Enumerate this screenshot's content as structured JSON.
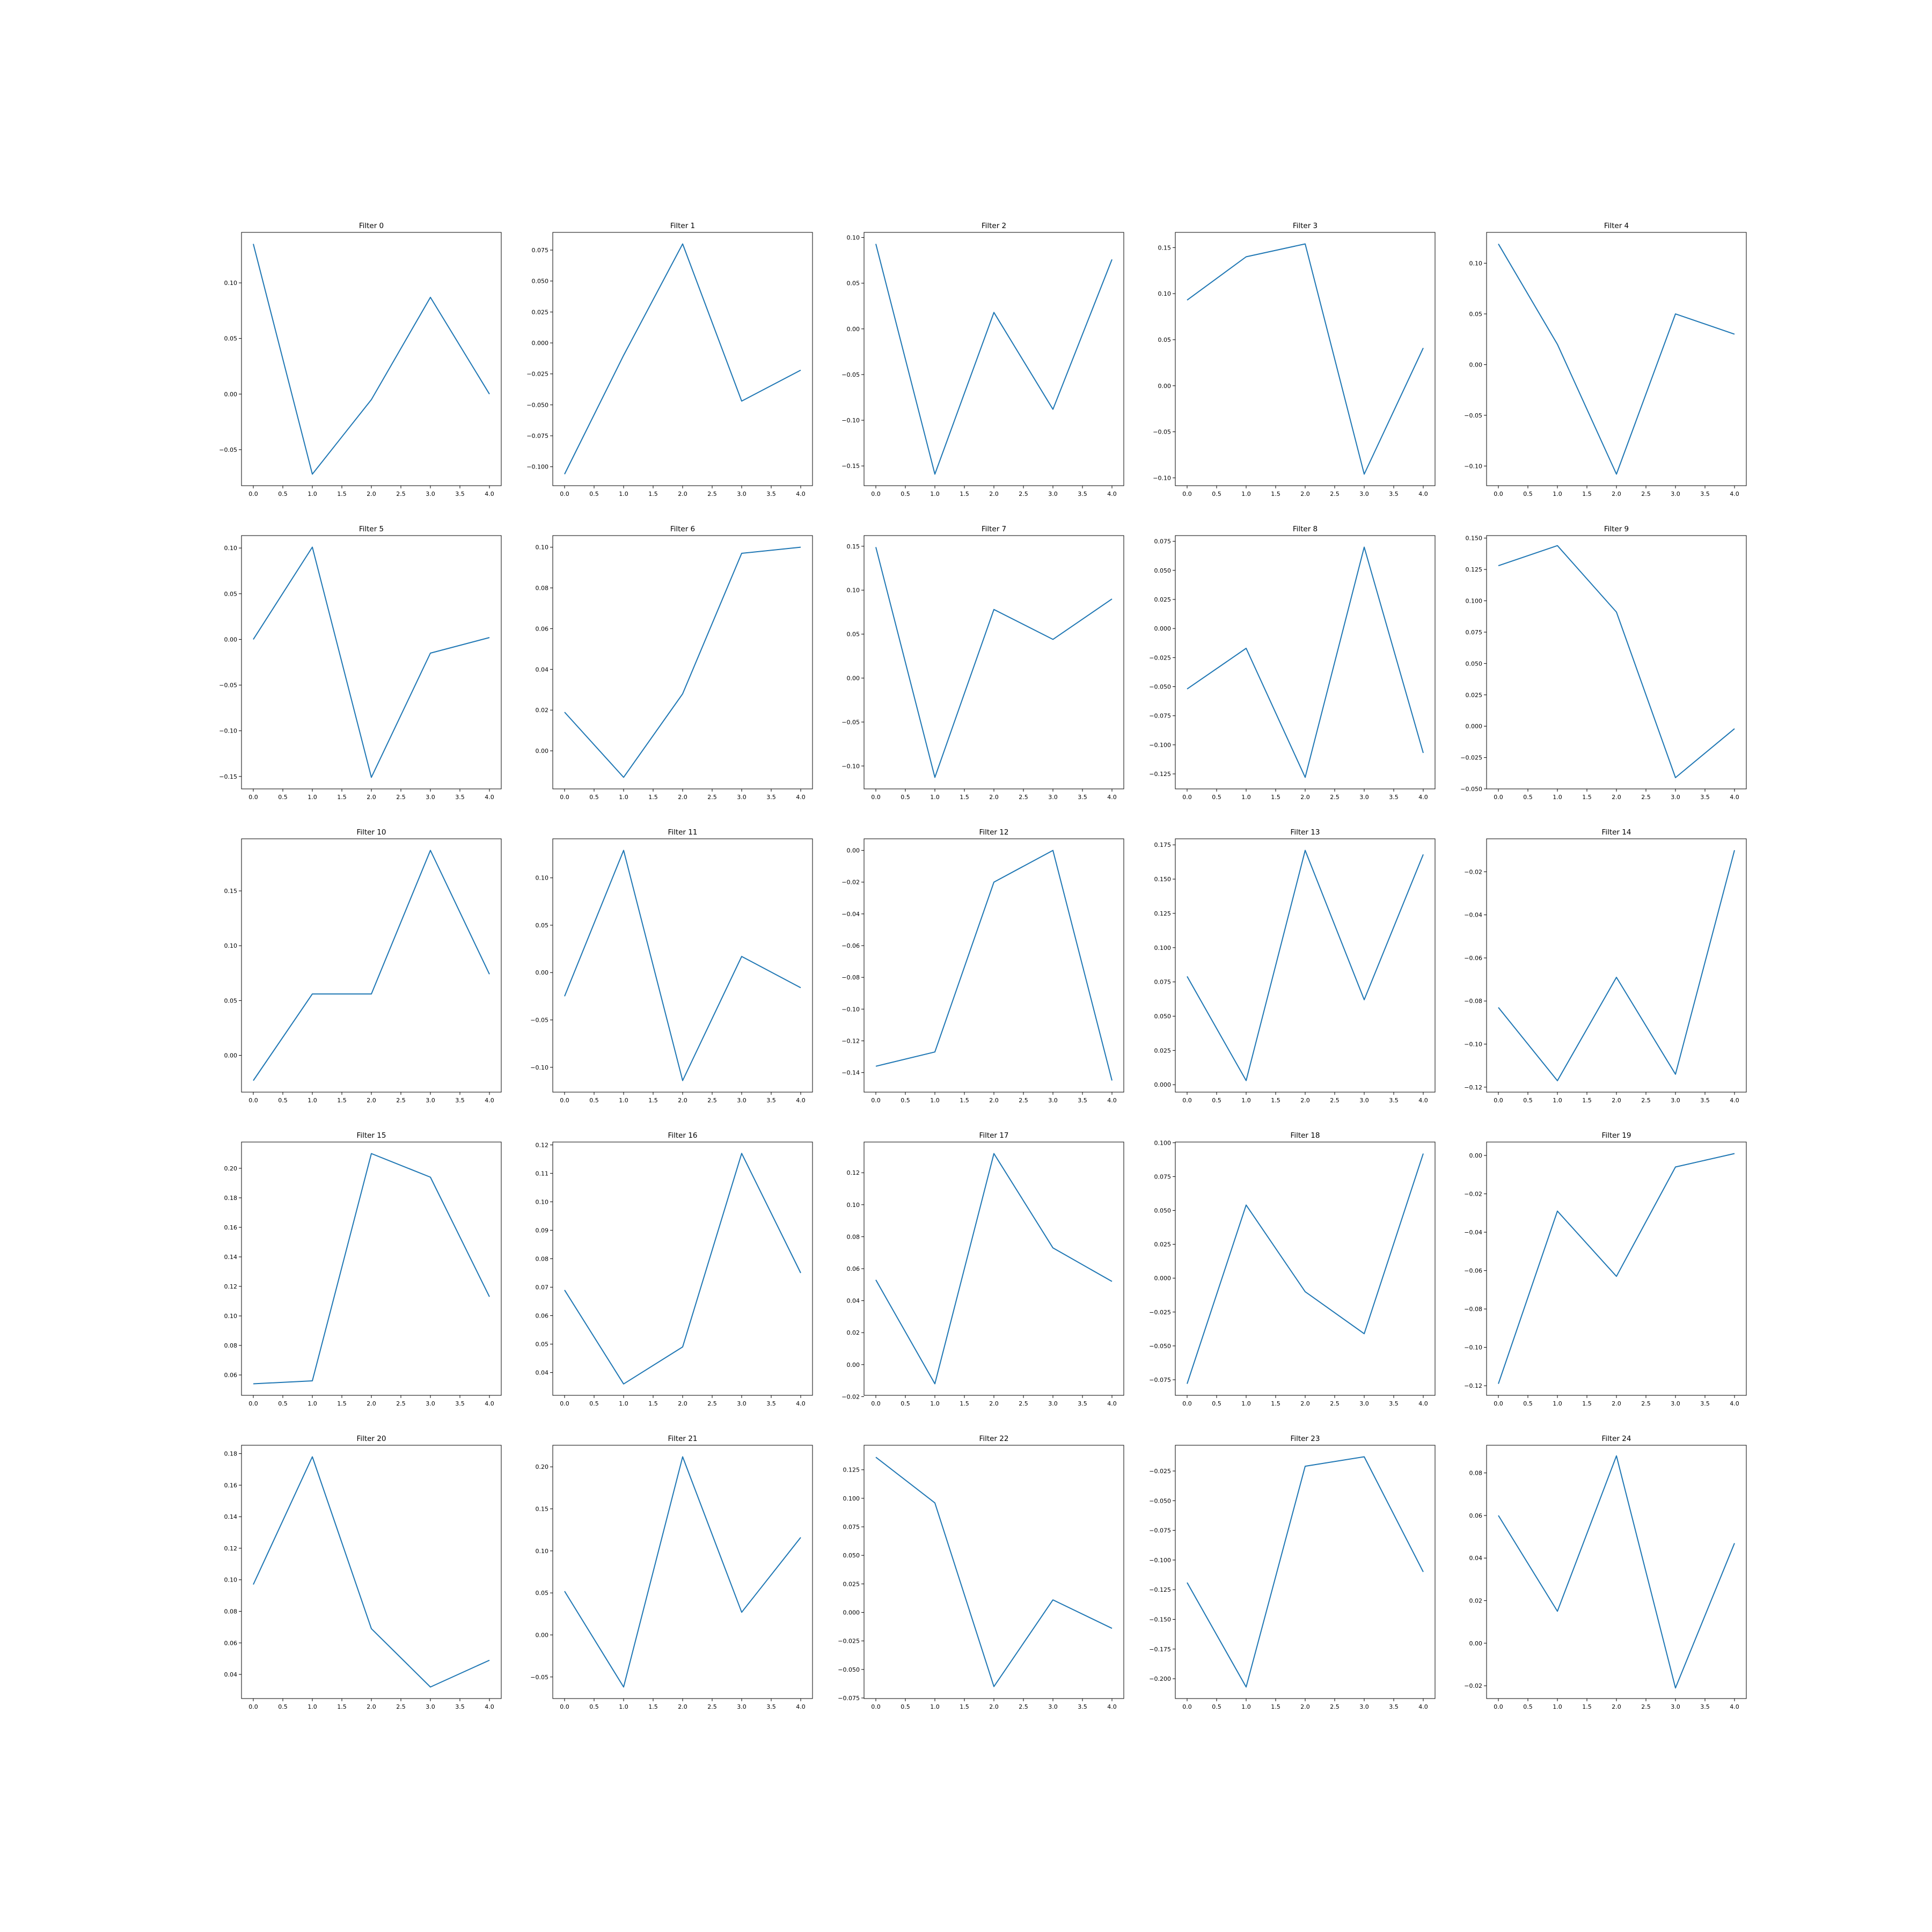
{
  "chart_data": [
    {
      "type": "line",
      "title": "Filter 0",
      "x": [
        0,
        1,
        2,
        3,
        4
      ],
      "values": [
        0.135,
        -0.072,
        -0.005,
        0.087,
        0.0
      ],
      "x_ticks": [
        "0.0",
        "0.5",
        "1.0",
        "1.5",
        "2.0",
        "2.5",
        "3.0",
        "3.5",
        "4.0"
      ],
      "y_ticks": [
        "−0.05",
        "0.00",
        "0.05",
        "0.10"
      ],
      "ylim": [
        -0.0824,
        0.1454
      ]
    },
    {
      "type": "line",
      "title": "Filter 1",
      "x": [
        0,
        1,
        2,
        3,
        4
      ],
      "values": [
        -0.106,
        -0.01,
        0.08,
        -0.047,
        -0.022
      ],
      "x_ticks": [
        "0.0",
        "0.5",
        "1.0",
        "1.5",
        "2.0",
        "2.5",
        "3.0",
        "3.5",
        "4.0"
      ],
      "y_ticks": [
        "−0.100",
        "−0.075",
        "−0.050",
        "−0.025",
        "0.000",
        "0.025",
        "0.050",
        "0.075"
      ],
      "ylim": [
        -0.1153,
        0.0893
      ]
    },
    {
      "type": "line",
      "title": "Filter 2",
      "x": [
        0,
        1,
        2,
        3,
        4
      ],
      "values": [
        0.093,
        -0.159,
        0.018,
        -0.088,
        0.076
      ],
      "x_ticks": [
        "0.0",
        "0.5",
        "1.0",
        "1.5",
        "2.0",
        "2.5",
        "3.0",
        "3.5",
        "4.0"
      ],
      "y_ticks": [
        "−0.15",
        "−0.10",
        "−0.05",
        "0.00",
        "0.05",
        "0.10"
      ],
      "ylim": [
        -0.1716,
        0.1056
      ]
    },
    {
      "type": "line",
      "title": "Filter 3",
      "x": [
        0,
        1,
        2,
        3,
        4
      ],
      "values": [
        0.093,
        0.14,
        0.154,
        -0.096,
        0.041
      ],
      "x_ticks": [
        "0.0",
        "0.5",
        "1.0",
        "1.5",
        "2.0",
        "2.5",
        "3.0",
        "3.5",
        "4.0"
      ],
      "y_ticks": [
        "−0.10",
        "−0.05",
        "0.00",
        "0.05",
        "0.10",
        "0.15"
      ],
      "ylim": [
        -0.1085,
        0.1665
      ]
    },
    {
      "type": "line",
      "title": "Filter 4",
      "x": [
        0,
        1,
        2,
        3,
        4
      ],
      "values": [
        0.119,
        0.02,
        -0.108,
        0.05,
        0.03
      ],
      "x_ticks": [
        "0.0",
        "0.5",
        "1.0",
        "1.5",
        "2.0",
        "2.5",
        "3.0",
        "3.5",
        "4.0"
      ],
      "y_ticks": [
        "−0.10",
        "−0.05",
        "0.00",
        "0.05",
        "0.10"
      ],
      "ylim": [
        -0.1194,
        0.1304
      ]
    },
    {
      "type": "line",
      "title": "Filter 5",
      "x": [
        0,
        1,
        2,
        3,
        4
      ],
      "values": [
        0.0,
        0.101,
        -0.151,
        -0.015,
        0.002
      ],
      "x_ticks": [
        "0.0",
        "0.5",
        "1.0",
        "1.5",
        "2.0",
        "2.5",
        "3.0",
        "3.5",
        "4.0"
      ],
      "y_ticks": [
        "−0.15",
        "−0.10",
        "−0.05",
        "0.00",
        "0.05",
        "0.10"
      ],
      "ylim": [
        -0.1636,
        0.1136
      ]
    },
    {
      "type": "line",
      "title": "Filter 6",
      "x": [
        0,
        1,
        2,
        3,
        4
      ],
      "values": [
        0.019,
        -0.013,
        0.028,
        0.097,
        0.1
      ],
      "x_ticks": [
        "0.0",
        "0.5",
        "1.0",
        "1.5",
        "2.0",
        "2.5",
        "3.0",
        "3.5",
        "4.0"
      ],
      "y_ticks": [
        "0.00",
        "0.02",
        "0.04",
        "0.06",
        "0.08",
        "0.10"
      ],
      "ylim": [
        -0.0187,
        0.1057
      ]
    },
    {
      "type": "line",
      "title": "Filter 7",
      "x": [
        0,
        1,
        2,
        3,
        4
      ],
      "values": [
        0.149,
        -0.113,
        0.078,
        0.044,
        0.09
      ],
      "x_ticks": [
        "0.0",
        "0.5",
        "1.0",
        "1.5",
        "2.0",
        "2.5",
        "3.0",
        "3.5",
        "4.0"
      ],
      "y_ticks": [
        "−0.10",
        "−0.05",
        "0.00",
        "0.05",
        "0.10",
        "0.15"
      ],
      "ylim": [
        -0.1261,
        0.1621
      ]
    },
    {
      "type": "line",
      "title": "Filter 8",
      "x": [
        0,
        1,
        2,
        3,
        4
      ],
      "values": [
        -0.052,
        -0.017,
        -0.128,
        0.07,
        -0.107
      ],
      "x_ticks": [
        "0.0",
        "0.5",
        "1.0",
        "1.5",
        "2.0",
        "2.5",
        "3.0",
        "3.5",
        "4.0"
      ],
      "y_ticks": [
        "−0.125",
        "−0.100",
        "−0.075",
        "−0.050",
        "−0.025",
        "0.000",
        "0.025",
        "0.050",
        "0.075"
      ],
      "ylim": [
        -0.1379,
        0.0799
      ]
    },
    {
      "type": "line",
      "title": "Filter 9",
      "x": [
        0,
        1,
        2,
        3,
        4
      ],
      "values": [
        0.128,
        0.144,
        0.091,
        -0.041,
        -0.002
      ],
      "x_ticks": [
        "0.0",
        "0.5",
        "1.0",
        "1.5",
        "2.0",
        "2.5",
        "3.0",
        "3.5",
        "4.0"
      ],
      "y_ticks": [
        "−0.050",
        "−0.025",
        "0.000",
        "0.025",
        "0.050",
        "0.075",
        "0.100",
        "0.125",
        "0.150"
      ],
      "ylim": [
        -0.05,
        0.152
      ]
    },
    {
      "type": "line",
      "title": "Filter 10",
      "x": [
        0,
        1,
        2,
        3,
        4
      ],
      "values": [
        -0.023,
        0.056,
        0.056,
        0.187,
        0.074
      ],
      "x_ticks": [
        "0.0",
        "0.5",
        "1.0",
        "1.5",
        "2.0",
        "2.5",
        "3.0",
        "3.5",
        "4.0"
      ],
      "y_ticks": [
        "0.00",
        "0.05",
        "0.10",
        "0.15"
      ],
      "ylim": [
        -0.0335,
        0.1975
      ]
    },
    {
      "type": "line",
      "title": "Filter 11",
      "x": [
        0,
        1,
        2,
        3,
        4
      ],
      "values": [
        -0.025,
        0.129,
        -0.114,
        0.017,
        -0.016
      ],
      "x_ticks": [
        "0.0",
        "0.5",
        "1.0",
        "1.5",
        "2.0",
        "2.5",
        "3.0",
        "3.5",
        "4.0"
      ],
      "y_ticks": [
        "−0.10",
        "−0.05",
        "0.00",
        "0.05",
        "0.10"
      ],
      "ylim": [
        -0.1262,
        0.1412
      ]
    },
    {
      "type": "line",
      "title": "Filter 12",
      "x": [
        0,
        1,
        2,
        3,
        4
      ],
      "values": [
        -0.136,
        -0.127,
        -0.02,
        0.0,
        -0.145
      ],
      "x_ticks": [
        "0.0",
        "0.5",
        "1.0",
        "1.5",
        "2.0",
        "2.5",
        "3.0",
        "3.5",
        "4.0"
      ],
      "y_ticks": [
        "−0.14",
        "−0.12",
        "−0.10",
        "−0.08",
        "−0.06",
        "−0.04",
        "−0.02",
        "0.00"
      ],
      "ylim": [
        -0.1523,
        0.0073
      ]
    },
    {
      "type": "line",
      "title": "Filter 13",
      "x": [
        0,
        1,
        2,
        3,
        4
      ],
      "values": [
        0.079,
        0.003,
        0.171,
        0.062,
        0.168
      ],
      "x_ticks": [
        "0.0",
        "0.5",
        "1.0",
        "1.5",
        "2.0",
        "2.5",
        "3.0",
        "3.5",
        "4.0"
      ],
      "y_ticks": [
        "0.000",
        "0.025",
        "0.050",
        "0.075",
        "0.100",
        "0.125",
        "0.150",
        "0.175"
      ],
      "ylim": [
        -0.0054,
        0.1794
      ]
    },
    {
      "type": "line",
      "title": "Filter 14",
      "x": [
        0,
        1,
        2,
        3,
        4
      ],
      "values": [
        -0.083,
        -0.117,
        -0.069,
        -0.114,
        -0.01
      ],
      "x_ticks": [
        "0.0",
        "0.5",
        "1.0",
        "1.5",
        "2.0",
        "2.5",
        "3.0",
        "3.5",
        "4.0"
      ],
      "y_ticks": [
        "−0.12",
        "−0.10",
        "−0.08",
        "−0.06",
        "−0.04",
        "−0.02"
      ],
      "ylim": [
        -0.1223,
        -0.0047
      ]
    },
    {
      "type": "line",
      "title": "Filter 15",
      "x": [
        0,
        1,
        2,
        3,
        4
      ],
      "values": [
        0.054,
        0.056,
        0.21,
        0.194,
        0.113
      ],
      "x_ticks": [
        "0.0",
        "0.5",
        "1.0",
        "1.5",
        "2.0",
        "2.5",
        "3.0",
        "3.5",
        "4.0"
      ],
      "y_ticks": [
        "0.06",
        "0.08",
        "0.10",
        "0.12",
        "0.14",
        "0.16",
        "0.18",
        "0.20"
      ],
      "ylim": [
        0.0462,
        0.2178
      ]
    },
    {
      "type": "line",
      "title": "Filter 16",
      "x": [
        0,
        1,
        2,
        3,
        4
      ],
      "values": [
        0.069,
        0.036,
        0.049,
        0.117,
        0.075
      ],
      "x_ticks": [
        "0.0",
        "0.5",
        "1.0",
        "1.5",
        "2.0",
        "2.5",
        "3.0",
        "3.5",
        "4.0"
      ],
      "y_ticks": [
        "0.04",
        "0.05",
        "0.06",
        "0.07",
        "0.08",
        "0.09",
        "0.10",
        "0.11",
        "0.12"
      ],
      "ylim": [
        0.032,
        0.121
      ]
    },
    {
      "type": "line",
      "title": "Filter 17",
      "x": [
        0,
        1,
        2,
        3,
        4
      ],
      "values": [
        0.053,
        -0.012,
        0.132,
        0.073,
        0.052
      ],
      "x_ticks": [
        "0.0",
        "0.5",
        "1.0",
        "1.5",
        "2.0",
        "2.5",
        "3.0",
        "3.5",
        "4.0"
      ],
      "y_ticks": [
        "−0.02",
        "0.00",
        "0.02",
        "0.04",
        "0.06",
        "0.08",
        "0.10",
        "0.12"
      ],
      "ylim": [
        -0.0192,
        0.1392
      ]
    },
    {
      "type": "line",
      "title": "Filter 18",
      "x": [
        0,
        1,
        2,
        3,
        4
      ],
      "values": [
        -0.078,
        0.054,
        -0.01,
        -0.041,
        0.092
      ],
      "x_ticks": [
        "0.0",
        "0.5",
        "1.0",
        "1.5",
        "2.0",
        "2.5",
        "3.0",
        "3.5",
        "4.0"
      ],
      "y_ticks": [
        "−0.075",
        "−0.050",
        "−0.025",
        "0.000",
        "0.025",
        "0.050",
        "0.075",
        "0.100"
      ],
      "ylim": [
        -0.0865,
        0.1005
      ]
    },
    {
      "type": "line",
      "title": "Filter 19",
      "x": [
        0,
        1,
        2,
        3,
        4
      ],
      "values": [
        -0.119,
        -0.029,
        -0.063,
        -0.006,
        0.001
      ],
      "x_ticks": [
        "0.0",
        "0.5",
        "1.0",
        "1.5",
        "2.0",
        "2.5",
        "3.0",
        "3.5",
        "4.0"
      ],
      "y_ticks": [
        "−0.12",
        "−0.10",
        "−0.08",
        "−0.06",
        "−0.04",
        "−0.02",
        "0.00"
      ],
      "ylim": [
        -0.125,
        0.007
      ]
    },
    {
      "type": "line",
      "title": "Filter 20",
      "x": [
        0,
        1,
        2,
        3,
        4
      ],
      "values": [
        0.097,
        0.178,
        0.069,
        0.032,
        0.049
      ],
      "x_ticks": [
        "0.0",
        "0.5",
        "1.0",
        "1.5",
        "2.0",
        "2.5",
        "3.0",
        "3.5",
        "4.0"
      ],
      "y_ticks": [
        "0.04",
        "0.06",
        "0.08",
        "0.10",
        "0.12",
        "0.14",
        "0.16",
        "0.18"
      ],
      "ylim": [
        0.0247,
        0.1853
      ]
    },
    {
      "type": "line",
      "title": "Filter 21",
      "x": [
        0,
        1,
        2,
        3,
        4
      ],
      "values": [
        0.052,
        -0.062,
        0.212,
        0.027,
        0.116
      ],
      "x_ticks": [
        "0.0",
        "0.5",
        "1.0",
        "1.5",
        "2.0",
        "2.5",
        "3.0",
        "3.5",
        "4.0"
      ],
      "y_ticks": [
        "−0.05",
        "0.00",
        "0.05",
        "0.10",
        "0.15",
        "0.20"
      ],
      "ylim": [
        -0.0757,
        0.2257
      ]
    },
    {
      "type": "line",
      "title": "Filter 22",
      "x": [
        0,
        1,
        2,
        3,
        4
      ],
      "values": [
        0.136,
        0.096,
        -0.065,
        0.011,
        -0.014
      ],
      "x_ticks": [
        "0.0",
        "0.5",
        "1.0",
        "1.5",
        "2.0",
        "2.5",
        "3.0",
        "3.5",
        "4.0"
      ],
      "y_ticks": [
        "−0.075",
        "−0.050",
        "−0.025",
        "0.000",
        "0.025",
        "0.050",
        "0.075",
        "0.100",
        "0.125"
      ],
      "ylim": [
        -0.0755,
        0.1465
      ]
    },
    {
      "type": "line",
      "title": "Filter 23",
      "x": [
        0,
        1,
        2,
        3,
        4
      ],
      "values": [
        -0.119,
        -0.207,
        -0.021,
        -0.013,
        -0.11
      ],
      "x_ticks": [
        "0.0",
        "0.5",
        "1.0",
        "1.5",
        "2.0",
        "2.5",
        "3.0",
        "3.5",
        "4.0"
      ],
      "y_ticks": [
        "−0.200",
        "−0.175",
        "−0.150",
        "−0.125",
        "−0.100",
        "−0.075",
        "−0.050",
        "−0.025"
      ],
      "ylim": [
        -0.2167,
        -0.0033
      ]
    },
    {
      "type": "line",
      "title": "Filter 24",
      "x": [
        0,
        1,
        2,
        3,
        4
      ],
      "values": [
        0.06,
        0.015,
        0.088,
        -0.021,
        0.047
      ],
      "x_ticks": [
        "0.0",
        "0.5",
        "1.0",
        "1.5",
        "2.0",
        "2.5",
        "3.0",
        "3.5",
        "4.0"
      ],
      "y_ticks": [
        "−0.02",
        "0.00",
        "0.02",
        "0.04",
        "0.06",
        "0.08"
      ],
      "ylim": [
        -0.026,
        0.093
      ]
    }
  ],
  "style": {
    "line_color": "#1f77b4",
    "axes_color": "#000000",
    "background": "#ffffff"
  }
}
